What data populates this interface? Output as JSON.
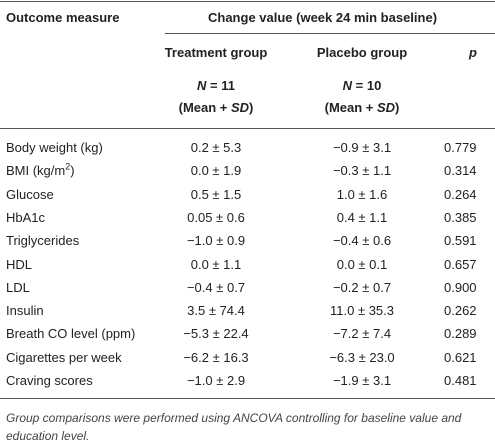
{
  "header": {
    "outcome": "Outcome measure",
    "change": "Change value (week 24 min baseline)",
    "treatment": "Treatment group",
    "placebo": "Placebo group",
    "p": "p",
    "treatment_n": [
      "N",
      " = 11"
    ],
    "placebo_n": [
      "N",
      " = 10"
    ],
    "treatment_stat": [
      "(Mean + ",
      "SD",
      ")"
    ],
    "placebo_stat": [
      "(Mean + ",
      "SD",
      ")"
    ]
  },
  "table": {
    "rows": [
      [
        [
          "Body weight (kg)"
        ],
        "0.2 ± 5.3",
        "−0.9 ± 3.1",
        "0.779"
      ],
      [
        [
          "BMI (kg/m",
          "2",
          ")"
        ],
        "0.0 ± 1.9",
        "−0.3 ± 1.1",
        "0.314"
      ],
      [
        [
          "Glucose"
        ],
        "0.5 ± 1.5",
        "1.0 ± 1.6",
        "0.264"
      ],
      [
        [
          "HbA1c"
        ],
        "0.05 ± 0.6",
        "0.4 ± 1.1",
        "0.385"
      ],
      [
        [
          "Triglycerides"
        ],
        "−1.0 ± 0.9",
        "−0.4 ± 0.6",
        "0.591"
      ],
      [
        [
          "HDL"
        ],
        "0.0 ± 1.1",
        "0.0 ± 0.1",
        "0.657"
      ],
      [
        [
          "LDL"
        ],
        "−0.4 ± 0.7",
        "−0.2 ± 0.7",
        "0.900"
      ],
      [
        [
          "Insulin"
        ],
        "3.5 ± 74.4",
        "11.0 ± 35.3",
        "0.262"
      ],
      [
        [
          "Breath CO level (ppm)"
        ],
        "−5.3 ± 22.4",
        "−7.2 ± 7.4",
        "0.289"
      ],
      [
        [
          "Cigarettes per week"
        ],
        "−6.2 ± 16.3",
        "−6.3 ± 23.0",
        "0.621"
      ],
      [
        [
          "Craving scores"
        ],
        "−1.0 ± 2.9",
        "−1.9 ± 3.1",
        "0.481"
      ]
    ]
  },
  "footnote": "Group comparisons were performed using ANCOVA controlling for baseline value and education level."
}
